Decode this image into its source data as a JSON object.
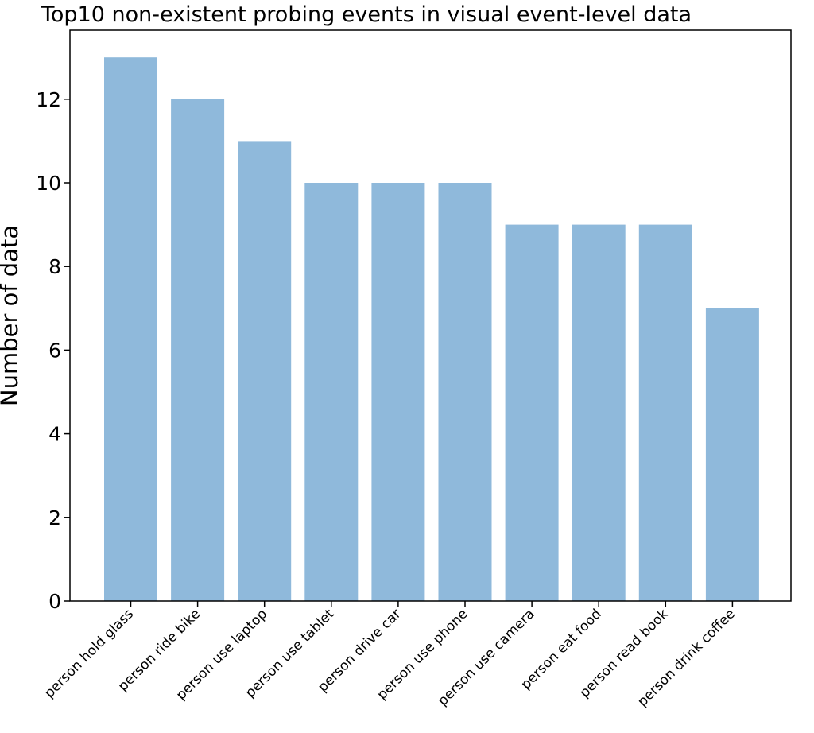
{
  "chart_data": {
    "type": "bar",
    "title": "Top10 non-existent probing events in visual event-level data",
    "xlabel": "",
    "ylabel": "Number of data",
    "categories": [
      "person hold glass",
      "person ride bike",
      "person use laptop",
      "person use tablet",
      "person drive car",
      "person use phone",
      "person use camera",
      "person eat food",
      "person read book",
      "person drink coffee"
    ],
    "values": [
      13,
      12,
      11,
      10,
      10,
      10,
      9,
      9,
      9,
      7
    ],
    "ylim": [
      0,
      13.65
    ],
    "yticks": [
      0,
      2,
      4,
      6,
      8,
      10,
      12
    ],
    "bar_color": "#8fb9db",
    "grid": false,
    "legend": "none"
  }
}
